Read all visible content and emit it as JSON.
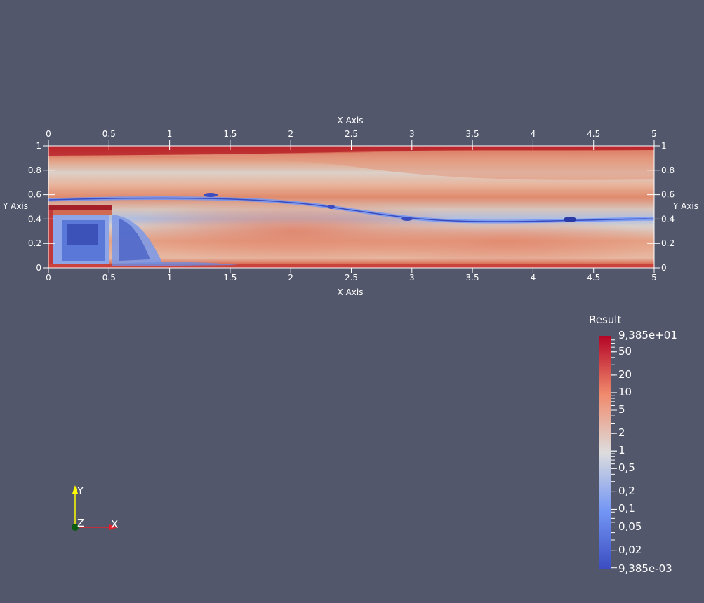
{
  "plot": {
    "x_axis_title_top": "X Axis",
    "x_axis_title_bottom": "X Axis",
    "y_axis_title_left": "Y Axis",
    "y_axis_title_right": "Y Axis",
    "x_ticks": [
      "0",
      "0.5",
      "1",
      "1.5",
      "2",
      "2.5",
      "3",
      "3.5",
      "4",
      "4.5",
      "5"
    ],
    "y_ticks": [
      "0",
      "0.2",
      "0.4",
      "0.6",
      "0.8",
      "1"
    ],
    "x_range": [
      0,
      5
    ],
    "y_range": [
      0,
      1
    ],
    "colormap": "cool-to-warm (blue-white-red)"
  },
  "scalar_bar": {
    "title": "Result",
    "max_label": "9,385e+01",
    "min_label": "9,385e-03",
    "labels": [
      {
        "text": "50",
        "value": 50
      },
      {
        "text": "20",
        "value": 20
      },
      {
        "text": "10",
        "value": 10
      },
      {
        "text": "5",
        "value": 5
      },
      {
        "text": "2",
        "value": 2
      },
      {
        "text": "1",
        "value": 1
      },
      {
        "text": "0,5",
        "value": 0.5
      },
      {
        "text": "0,2",
        "value": 0.2
      },
      {
        "text": "0,1",
        "value": 0.1
      },
      {
        "text": "0,05",
        "value": 0.05
      },
      {
        "text": "0,02",
        "value": 0.02
      }
    ],
    "min_value": 0.009385,
    "max_value": 93.85,
    "scale": "log",
    "colors": {
      "low": "#3b4cc0",
      "mid": "#dddddd",
      "high": "#b40426"
    }
  },
  "orientation_axes": {
    "x_label": "X",
    "y_label": "Y",
    "z_label": "Z",
    "x_color": "#e3202b",
    "y_color": "#ffff00",
    "z_color": "#0a5c12"
  },
  "background_color": "#52576b"
}
